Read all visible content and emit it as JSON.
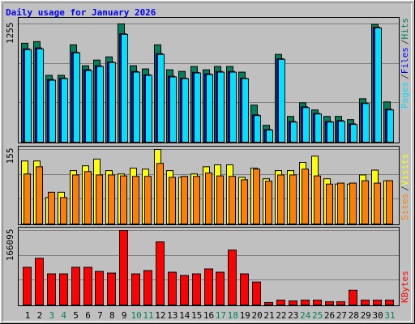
{
  "title": "Daily usage for January 2026",
  "legend_separator": "/",
  "chart_data": [
    {
      "type": "bar",
      "series": [
        {
          "name": "Hits",
          "color": "#00805c",
          "values": [
            1050,
            1067,
            709,
            709,
            1033,
            811,
            871,
            905,
            1255,
            811,
            777,
            1033,
            768,
            751,
            803,
            768,
            803,
            803,
            743,
            393,
            179,
            931,
            273,
            418,
            342,
            273,
            273,
            239,
            461,
            1250,
            427
          ]
        },
        {
          "name": "Files",
          "color": "#0000ff",
          "values": [
            990,
            1000,
            665,
            680,
            955,
            770,
            810,
            850,
            1150,
            750,
            715,
            940,
            700,
            680,
            740,
            725,
            750,
            750,
            680,
            290,
            135,
            885,
            220,
            375,
            305,
            220,
            230,
            195,
            415,
            1220,
            350
          ]
        },
        {
          "name": "Pages",
          "color": "#00e0ff",
          "values": [
            982,
            990,
            657,
            674,
            948,
            760,
            803,
            845,
            1144,
            743,
            709,
            931,
            692,
            674,
            734,
            717,
            743,
            743,
            674,
            282,
            128,
            879,
            213,
            367,
            299,
            213,
            222,
            188,
            410,
            1212,
            342
          ]
        }
      ],
      "ylim": [
        0,
        1255
      ],
      "yticks": [
        1255
      ]
    },
    {
      "type": "bar",
      "series": [
        {
          "name": "Visits",
          "color": "#ffff00",
          "values": [
            131,
            131,
            55,
            66,
            111,
            121,
            135,
            111,
            104,
            116,
            114,
            155,
            111,
            97,
            104,
            119,
            123,
            123,
            97,
            116,
            94,
            111,
            111,
            128,
            141,
            94,
            83,
            83,
            102,
            112,
            90
          ]
        },
        {
          "name": "Sites",
          "color": "#ff8000",
          "values": [
            104,
            119,
            66,
            55,
            102,
            109,
            102,
            102,
            100,
            99,
            99,
            126,
            97,
            99,
            99,
            106,
            100,
            99,
            92,
            114,
            89,
            102,
            102,
            114,
            100,
            83,
            85,
            85,
            90,
            85,
            90
          ]
        }
      ],
      "ylim": [
        0,
        155
      ],
      "yticks": [
        155
      ]
    },
    {
      "type": "bar",
      "categories": [
        "1",
        "2",
        "3",
        "4",
        "5",
        "6",
        "7",
        "8",
        "9",
        "10",
        "11",
        "12",
        "13",
        "14",
        "15",
        "16",
        "17",
        "18",
        "19",
        "20",
        "21",
        "22",
        "23",
        "24",
        "25",
        "26",
        "27",
        "28",
        "29",
        "30",
        "31"
      ],
      "category_colors": [
        "#000000",
        "#000000",
        "#00805c",
        "#00805c",
        "#000000",
        "#000000",
        "#000000",
        "#000000",
        "#000000",
        "#00805c",
        "#00805c",
        "#000000",
        "#000000",
        "#000000",
        "#000000",
        "#000000",
        "#00805c",
        "#00805c",
        "#000000",
        "#000000",
        "#000000",
        "#000000",
        "#000000",
        "#00805c",
        "#00805c",
        "#000000",
        "#000000",
        "#000000",
        "#000000",
        "#000000",
        "#00805c"
      ],
      "series": [
        {
          "name": "KBytes",
          "color": "#ff0000",
          "values": [
            83960,
            104037,
            69358,
            69358,
            83960,
            83960,
            74834,
            71184,
            166095,
            69358,
            76659,
            140542,
            73009,
            65708,
            69358,
            80309,
            73009,
            122290,
            69358,
            51106,
            5476,
            10951,
            9126,
            10951,
            10951,
            7301,
            7301,
            32854,
            10951,
            10951,
            10951
          ]
        }
      ],
      "ylim": [
        0,
        166095
      ],
      "yticks": [
        166095
      ]
    }
  ]
}
